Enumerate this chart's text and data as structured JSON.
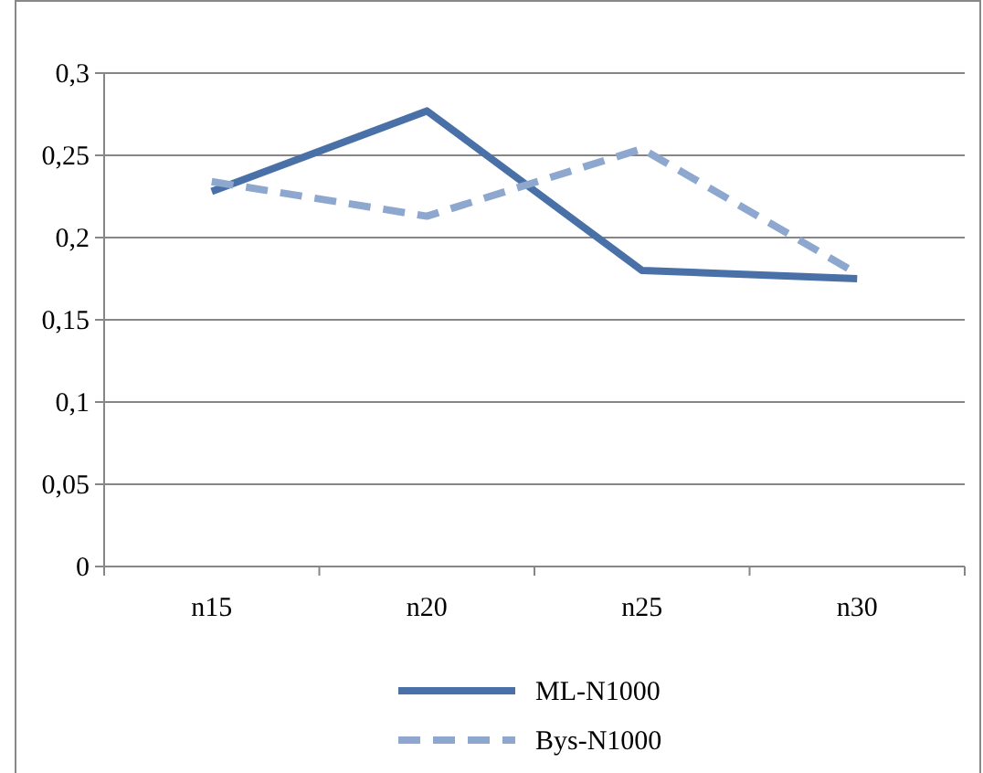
{
  "chart_data": {
    "type": "line",
    "categories": [
      "n15",
      "n20",
      "n25",
      "n30"
    ],
    "series": [
      {
        "name": "ML-N1000",
        "color": "#4a70a8",
        "values": [
          0.228,
          0.277,
          0.18,
          0.175
        ],
        "line_style": "solid"
      },
      {
        "name": "Bys-N1000",
        "color": "#8ea7cf",
        "values": [
          0.234,
          0.213,
          0.254,
          0.178
        ],
        "line_style": "dashed"
      }
    ],
    "ylim": [
      0,
      0.3
    ],
    "yticks": [
      {
        "value": 0,
        "label": "0"
      },
      {
        "value": 0.05,
        "label": "0,05"
      },
      {
        "value": 0.1,
        "label": "0,1"
      },
      {
        "value": 0.15,
        "label": "0,15"
      },
      {
        "value": 0.2,
        "label": "0,2"
      },
      {
        "value": 0.25,
        "label": "0,25"
      },
      {
        "value": 0.3,
        "label": "0,3"
      }
    ],
    "grid": "y",
    "legend": "bottom",
    "marker": "none"
  }
}
